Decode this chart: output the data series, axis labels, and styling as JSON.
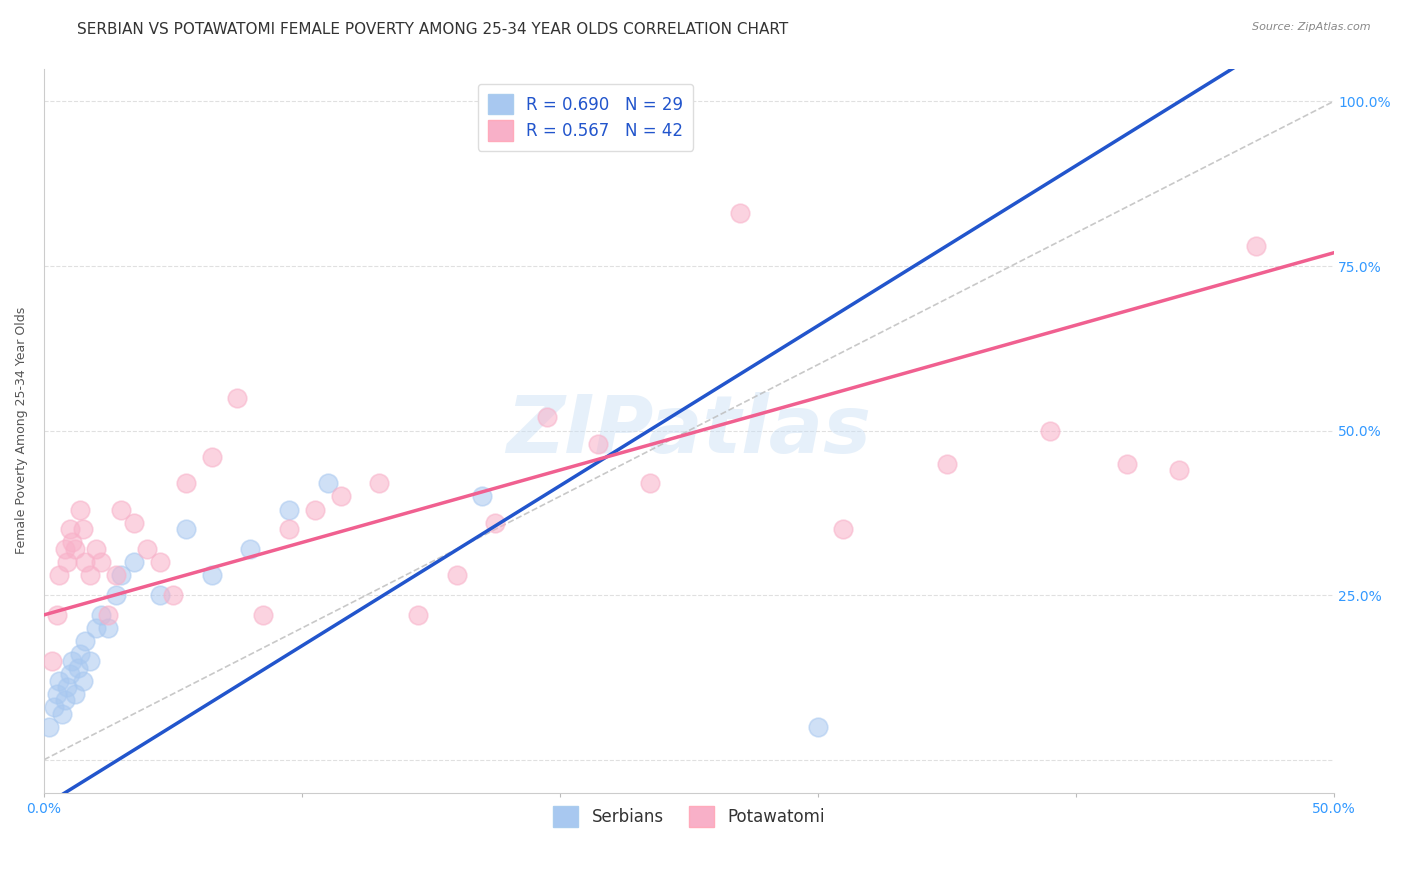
{
  "title": "SERBIAN VS POTAWATOMI FEMALE POVERTY AMONG 25-34 YEAR OLDS CORRELATION CHART",
  "source": "Source: ZipAtlas.com",
  "ylabel": "Female Poverty Among 25-34 Year Olds",
  "xlim": [
    0.0,
    0.5
  ],
  "ylim": [
    -0.05,
    1.05
  ],
  "xticks": [
    0.0,
    0.1,
    0.2,
    0.3,
    0.4,
    0.5
  ],
  "xticklabels": [
    "0.0%",
    "",
    "",
    "",
    "",
    "50.0%"
  ],
  "ytick_positions": [
    0.0,
    0.25,
    0.5,
    0.75,
    1.0
  ],
  "yticklabels": [
    "",
    "25.0%",
    "50.0%",
    "75.0%",
    "100.0%"
  ],
  "watermark": "ZIPatlas",
  "serbian_color": "#a8c8f0",
  "potawatomi_color": "#f8b0c8",
  "serbian_line_color": "#2255cc",
  "potawatomi_line_color": "#f06090",
  "dashed_line_color": "#bbbbbb",
  "legend_R_serbian": "R = 0.690",
  "legend_N_serbian": "N = 29",
  "legend_R_potawatomi": "R = 0.567",
  "legend_N_potawatomi": "N = 42",
  "title_fontsize": 11,
  "label_fontsize": 9,
  "tick_fontsize": 10,
  "grid_color": "#dddddd",
  "background_color": "#ffffff",
  "serbian_x": [
    0.002,
    0.004,
    0.005,
    0.006,
    0.007,
    0.008,
    0.009,
    0.01,
    0.011,
    0.012,
    0.013,
    0.014,
    0.015,
    0.016,
    0.018,
    0.02,
    0.022,
    0.025,
    0.028,
    0.03,
    0.035,
    0.045,
    0.055,
    0.065,
    0.08,
    0.095,
    0.11,
    0.17,
    0.3
  ],
  "serbian_y": [
    0.05,
    0.08,
    0.1,
    0.12,
    0.07,
    0.09,
    0.11,
    0.13,
    0.15,
    0.1,
    0.14,
    0.16,
    0.12,
    0.18,
    0.15,
    0.2,
    0.22,
    0.2,
    0.25,
    0.28,
    0.3,
    0.25,
    0.35,
    0.28,
    0.32,
    0.38,
    0.42,
    0.4,
    0.05
  ],
  "potawatomi_x": [
    0.003,
    0.005,
    0.006,
    0.008,
    0.009,
    0.01,
    0.011,
    0.012,
    0.014,
    0.015,
    0.016,
    0.018,
    0.02,
    0.022,
    0.025,
    0.028,
    0.03,
    0.035,
    0.04,
    0.045,
    0.05,
    0.055,
    0.065,
    0.075,
    0.085,
    0.095,
    0.105,
    0.115,
    0.13,
    0.145,
    0.16,
    0.175,
    0.195,
    0.215,
    0.235,
    0.27,
    0.31,
    0.35,
    0.39,
    0.42,
    0.44,
    0.47
  ],
  "potawatomi_y": [
    0.15,
    0.22,
    0.28,
    0.32,
    0.3,
    0.35,
    0.33,
    0.32,
    0.38,
    0.35,
    0.3,
    0.28,
    0.32,
    0.3,
    0.22,
    0.28,
    0.38,
    0.36,
    0.32,
    0.3,
    0.25,
    0.42,
    0.46,
    0.55,
    0.22,
    0.35,
    0.38,
    0.4,
    0.42,
    0.22,
    0.28,
    0.36,
    0.52,
    0.48,
    0.42,
    0.83,
    0.35,
    0.45,
    0.5,
    0.45,
    0.44,
    0.78
  ]
}
